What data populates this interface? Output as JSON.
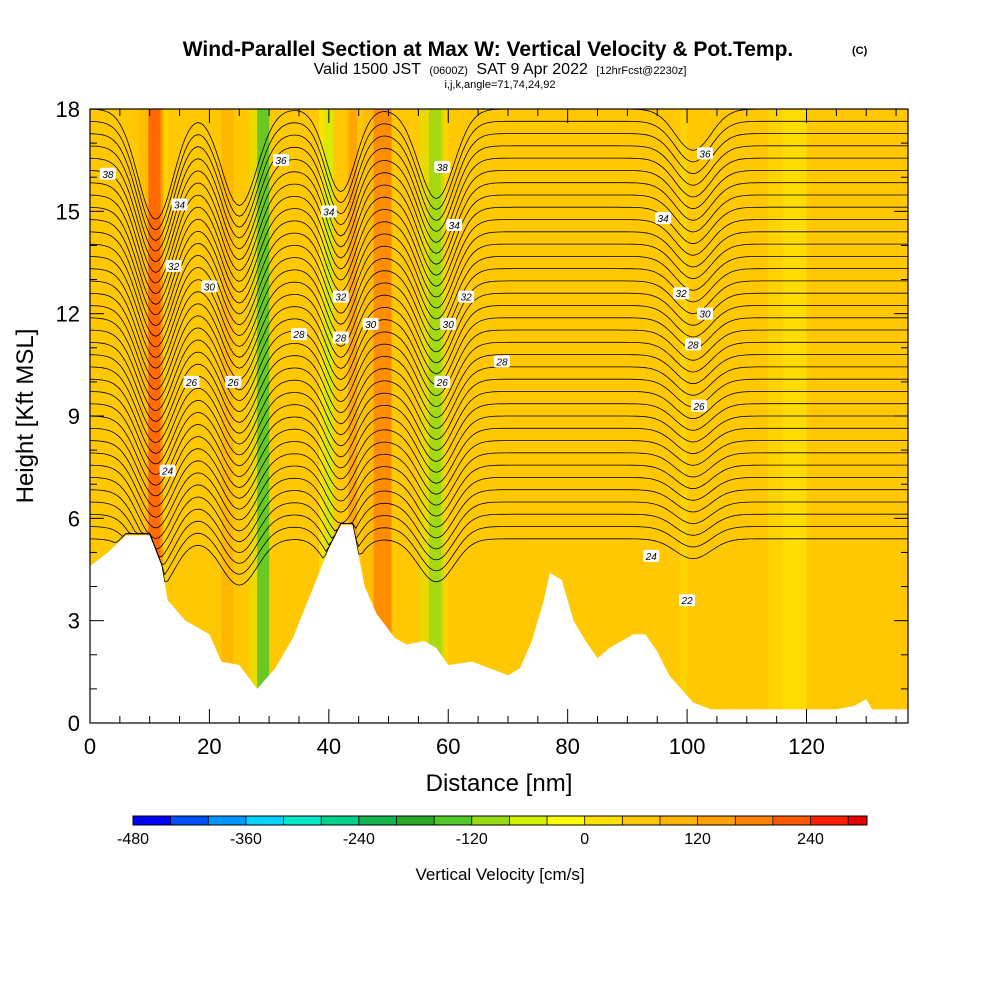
{
  "chart_data": {
    "type": "heatmap",
    "title": "Wind-Parallel Section at Max W: Vertical Velocity & Pot.Temp.",
    "copyright": "(C)",
    "subtitle": {
      "valid": "Valid 1500 JST",
      "zulu": "(0600Z)",
      "date": "SAT 9 Apr 2022",
      "forecast": "[12hrFcst@2230z]"
    },
    "grid_note": "i,j,k,angle=71,74,24,92",
    "xlabel": "Distance [nm]",
    "ylabel": "Height [Kft MSL]",
    "xlim": [
      0,
      137
    ],
    "ylim": [
      0,
      18
    ],
    "x_ticks": [
      0,
      20,
      40,
      60,
      80,
      100,
      120
    ],
    "y_ticks": [
      0,
      3,
      6,
      9,
      12,
      15,
      18
    ],
    "colorbar": {
      "label": "Vertical Velocity [cm/s]",
      "range": [
        -480,
        300
      ],
      "step": 40,
      "tick_values": [
        -480,
        -360,
        -240,
        -120,
        0,
        120,
        240
      ],
      "tick_labels": [
        "-480",
        "-360",
        "-240",
        "-120",
        "0",
        "120",
        "240"
      ],
      "colors": [
        "#0000ff",
        "#0050ff",
        "#0096ff",
        "#00d2ff",
        "#00e6c8",
        "#00d28c",
        "#14b450",
        "#28aa28",
        "#50c828",
        "#96dc14",
        "#d2f000",
        "#ffff00",
        "#ffe100",
        "#ffc800",
        "#ffb400",
        "#ffa000",
        "#ff8200",
        "#ff5a00",
        "#ff1e00",
        "#e60000",
        "#c8002d",
        "#a00064",
        "#78008c",
        "#5a00a0"
      ]
    },
    "velocity_bands": [
      {
        "x": 11,
        "w": 2.5,
        "value": 220
      },
      {
        "x": 14,
        "w": 2,
        "value": 60
      },
      {
        "x": 23,
        "w": 2,
        "value": 110
      },
      {
        "x": 29,
        "w": 2,
        "value": -150
      },
      {
        "x": 40,
        "w": 1.5,
        "value": -80
      },
      {
        "x": 44,
        "w": 1.5,
        "value": 150
      },
      {
        "x": 49,
        "w": 3,
        "value": 180
      },
      {
        "x": 58,
        "w": 2.5,
        "value": -120
      },
      {
        "x": 61,
        "w": 2,
        "value": 60
      },
      {
        "x": 101,
        "w": 2,
        "value": 40
      },
      {
        "x": 118,
        "w": 4,
        "value": 30
      }
    ],
    "terrain": [
      [
        0,
        4.6
      ],
      [
        3,
        5.0
      ],
      [
        6,
        5.5
      ],
      [
        8,
        5.5
      ],
      [
        10,
        5.5
      ],
      [
        12,
        4.6
      ],
      [
        13,
        3.6
      ],
      [
        14,
        3.4
      ],
      [
        16,
        3.0
      ],
      [
        18,
        2.8
      ],
      [
        20,
        2.6
      ],
      [
        22,
        1.8
      ],
      [
        25,
        1.7
      ],
      [
        28,
        1.0
      ],
      [
        31,
        1.6
      ],
      [
        34,
        2.5
      ],
      [
        37,
        3.8
      ],
      [
        40,
        5.1
      ],
      [
        42,
        5.8
      ],
      [
        44,
        5.8
      ],
      [
        46,
        4.0
      ],
      [
        48,
        3.2
      ],
      [
        51,
        2.5
      ],
      [
        53,
        2.3
      ],
      [
        56,
        2.4
      ],
      [
        58,
        2.2
      ],
      [
        60,
        1.7
      ],
      [
        64,
        1.8
      ],
      [
        67,
        1.6
      ],
      [
        70,
        1.4
      ],
      [
        72,
        1.6
      ],
      [
        74,
        2.4
      ],
      [
        76,
        3.6
      ],
      [
        77,
        4.4
      ],
      [
        79,
        4.2
      ],
      [
        81,
        3.0
      ],
      [
        83,
        2.4
      ],
      [
        85,
        1.9
      ],
      [
        87,
        2.2
      ],
      [
        89,
        2.4
      ],
      [
        91,
        2.6
      ],
      [
        93,
        2.6
      ],
      [
        95,
        2.1
      ],
      [
        97,
        1.4
      ],
      [
        99,
        1.0
      ],
      [
        101,
        0.6
      ],
      [
        104,
        0.4
      ],
      [
        108,
        0.4
      ],
      [
        115,
        0.4
      ],
      [
        120,
        0.4
      ],
      [
        125,
        0.4
      ],
      [
        128,
        0.5
      ],
      [
        130,
        0.7
      ],
      [
        131,
        0.4
      ],
      [
        137,
        0.4
      ]
    ],
    "theta_contours": {
      "levels": [
        22,
        24,
        26,
        28,
        30,
        32,
        34,
        36,
        38
      ],
      "labels": [
        {
          "text": "24",
          "x": 13,
          "y": 7.4
        },
        {
          "text": "26",
          "x": 17,
          "y": 10.0
        },
        {
          "text": "26",
          "x": 24,
          "y": 10.0
        },
        {
          "text": "28",
          "x": 35,
          "y": 11.4
        },
        {
          "text": "28",
          "x": 42,
          "y": 11.3
        },
        {
          "text": "30",
          "x": 20,
          "y": 12.8
        },
        {
          "text": "30",
          "x": 47,
          "y": 11.7
        },
        {
          "text": "30",
          "x": 60,
          "y": 11.7
        },
        {
          "text": "32",
          "x": 14,
          "y": 13.4
        },
        {
          "text": "32",
          "x": 42,
          "y": 12.5
        },
        {
          "text": "32",
          "x": 63,
          "y": 12.5
        },
        {
          "text": "34",
          "x": 15,
          "y": 15.2
        },
        {
          "text": "34",
          "x": 40,
          "y": 15.0
        },
        {
          "text": "34",
          "x": 61,
          "y": 14.6
        },
        {
          "text": "34",
          "x": 96,
          "y": 14.8
        },
        {
          "text": "36",
          "x": 32,
          "y": 16.5
        },
        {
          "text": "36",
          "x": 103,
          "y": 16.7
        },
        {
          "text": "38",
          "x": 3,
          "y": 16.1
        },
        {
          "text": "38",
          "x": 59,
          "y": 16.3
        },
        {
          "text": "26",
          "x": 59,
          "y": 10.0
        },
        {
          "text": "28",
          "x": 69,
          "y": 10.6
        },
        {
          "text": "32",
          "x": 99,
          "y": 12.6
        },
        {
          "text": "30",
          "x": 103,
          "y": 12.0
        },
        {
          "text": "28",
          "x": 101,
          "y": 11.1
        },
        {
          "text": "26",
          "x": 102,
          "y": 9.3
        },
        {
          "text": "24",
          "x": 94,
          "y": 4.9
        },
        {
          "text": "22",
          "x": 100,
          "y": 3.6
        }
      ]
    }
  }
}
